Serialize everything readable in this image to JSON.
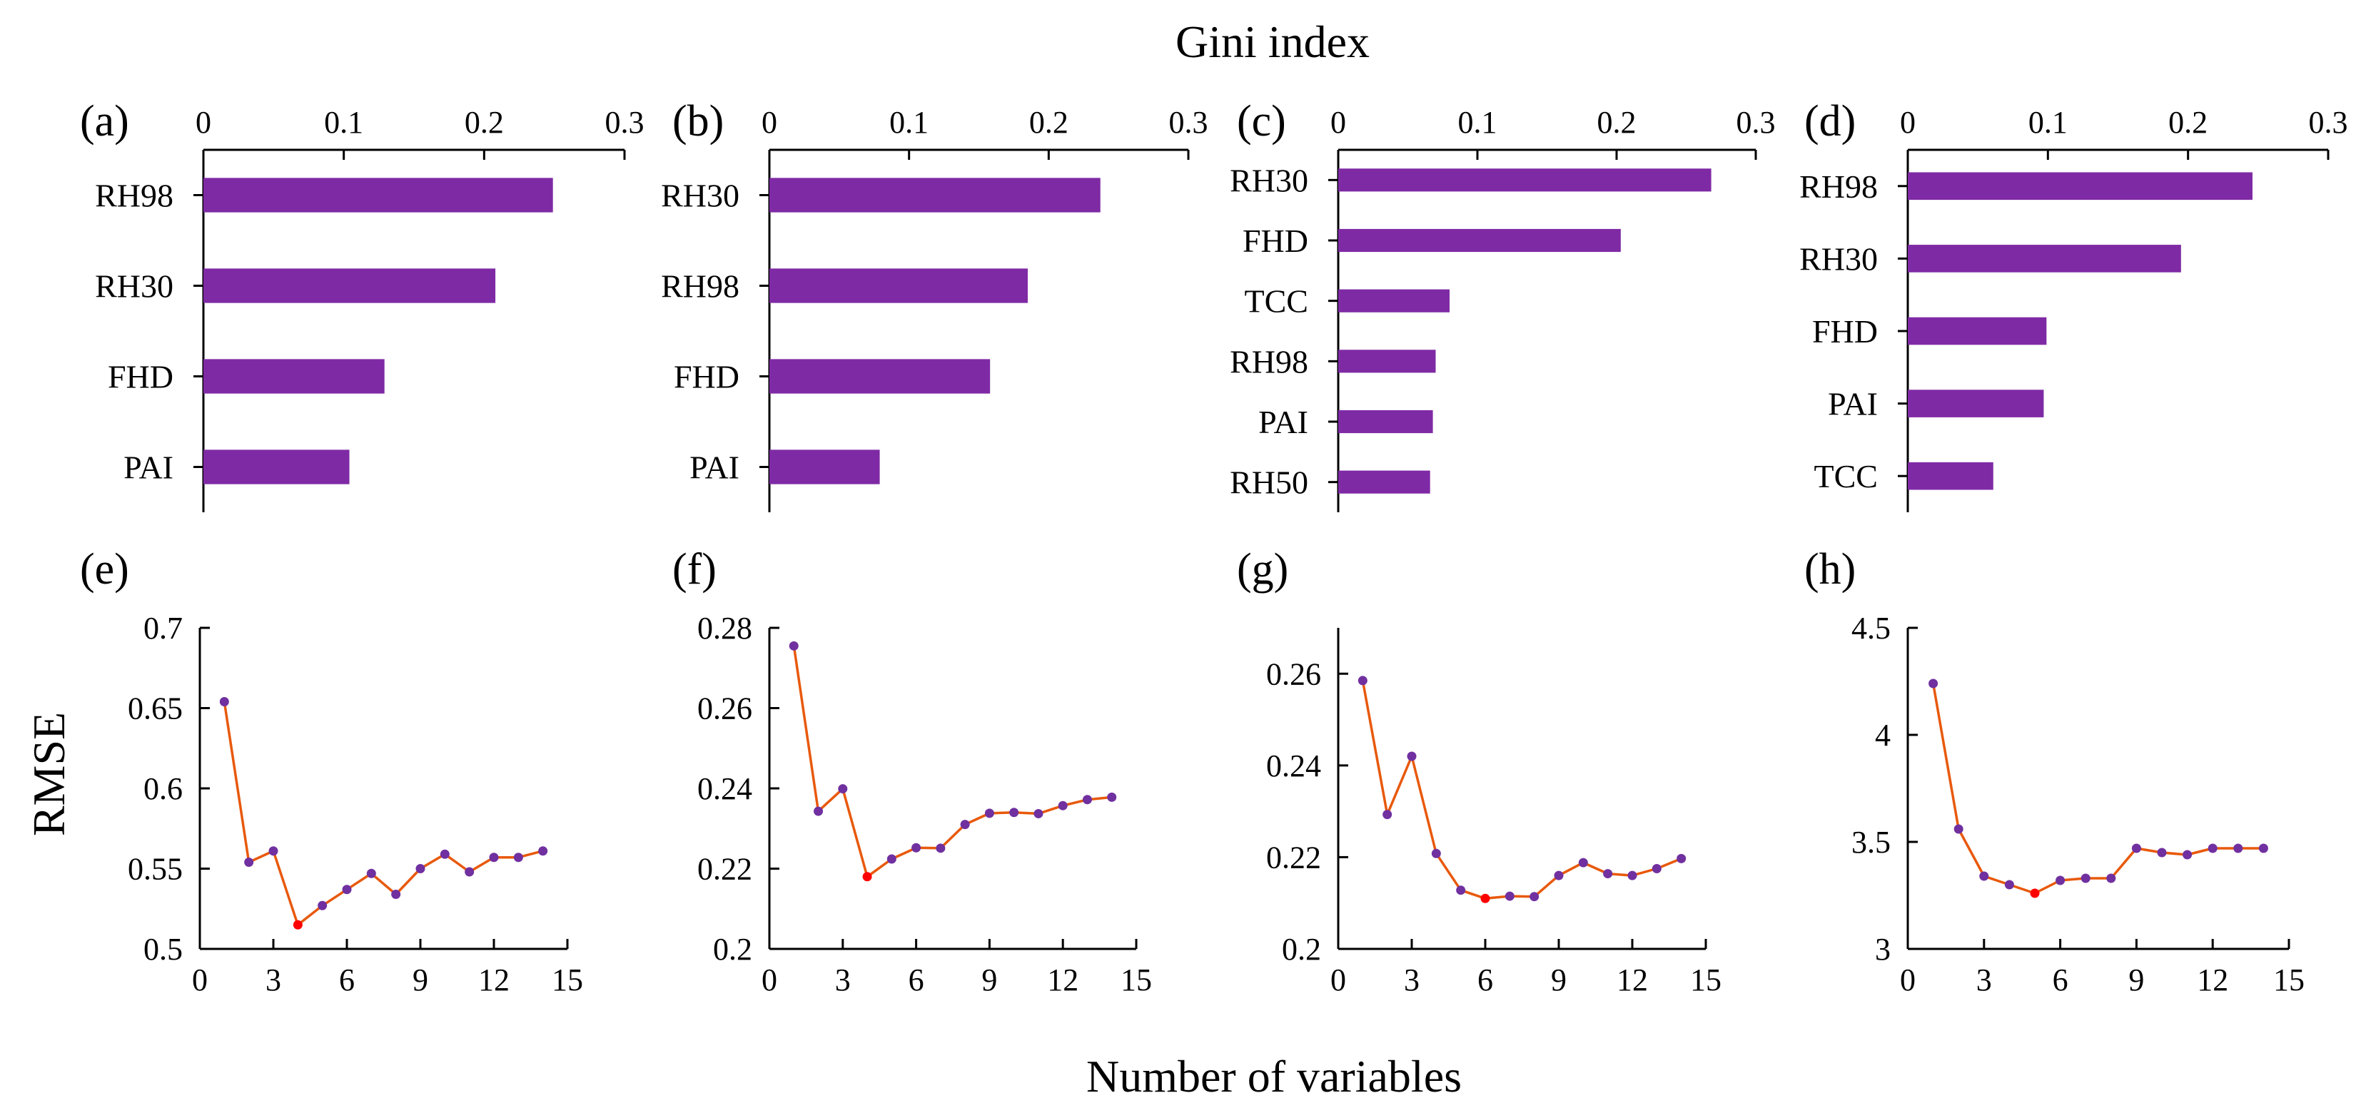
{
  "figure": {
    "top_title": "Gini index",
    "x_title_bottom": "Number of variables",
    "y_title_left": "RMSE"
  },
  "colors": {
    "bar": "#7f2aa5",
    "line": "#e8590c",
    "point": "#7030a0",
    "optimal_point": "#ff0000",
    "axis": "#000000"
  },
  "chart_data": [
    {
      "type": "bar",
      "orientation": "horizontal",
      "panel": "(a)",
      "xlabel": "Gini index",
      "xlim": [
        0,
        0.3
      ],
      "xticks": [
        "0",
        "0.1",
        "0.2",
        "0.3"
      ],
      "categories": [
        "RH98",
        "RH30",
        "FHD",
        "PAI"
      ],
      "values": [
        0.249,
        0.208,
        0.129,
        0.104
      ]
    },
    {
      "type": "bar",
      "orientation": "horizontal",
      "panel": "(b)",
      "xlabel": "Gini index",
      "xlim": [
        0,
        0.3
      ],
      "xticks": [
        "0",
        "0.1",
        "0.2",
        "0.3"
      ],
      "categories": [
        "RH30",
        "RH98",
        "FHD",
        "PAI"
      ],
      "values": [
        0.237,
        0.185,
        0.158,
        0.079
      ]
    },
    {
      "type": "bar",
      "orientation": "horizontal",
      "panel": "(c)",
      "xlabel": "Gini index",
      "xlim": [
        0,
        0.3
      ],
      "xticks": [
        "0",
        "0.1",
        "0.2",
        "0.3"
      ],
      "categories": [
        "RH30",
        "FHD",
        "TCC",
        "RH98",
        "PAI",
        "RH50"
      ],
      "values": [
        0.268,
        0.203,
        0.08,
        0.07,
        0.068,
        0.066
      ]
    },
    {
      "type": "bar",
      "orientation": "horizontal",
      "panel": "(d)",
      "xlabel": "Gini index",
      "xlim": [
        0,
        0.3
      ],
      "xticks": [
        "0",
        "0.1",
        "0.2",
        "0.3"
      ],
      "categories": [
        "RH98",
        "RH30",
        "FHD",
        "PAI",
        "TCC"
      ],
      "values": [
        0.246,
        0.195,
        0.099,
        0.097,
        0.061
      ]
    },
    {
      "type": "line",
      "panel": "(e)",
      "xlabel": "Number of variables",
      "ylabel": "RMSE",
      "xlim": [
        0,
        15
      ],
      "ylim": [
        0.5,
        0.7
      ],
      "xticks": [
        "0",
        "3",
        "6",
        "9",
        "12",
        "15"
      ],
      "yticks": [
        "0.5",
        "0.55",
        "0.6",
        "0.65",
        "0.7"
      ],
      "x": [
        1,
        2,
        3,
        4,
        5,
        6,
        7,
        8,
        9,
        10,
        11,
        12,
        13,
        14
      ],
      "y": [
        0.654,
        0.554,
        0.561,
        0.515,
        0.527,
        0.537,
        0.547,
        0.534,
        0.55,
        0.559,
        0.548,
        0.557,
        0.557,
        0.561
      ],
      "optimal_index": 3
    },
    {
      "type": "line",
      "panel": "(f)",
      "xlabel": "Number of variables",
      "ylabel": "RMSE",
      "xlim": [
        0,
        15
      ],
      "ylim": [
        0.2,
        0.28
      ],
      "xticks": [
        "0",
        "3",
        "6",
        "9",
        "12",
        "15"
      ],
      "yticks": [
        "0.2",
        "0.22",
        "0.24",
        "0.26",
        "0.28"
      ],
      "x": [
        1,
        2,
        3,
        4,
        5,
        6,
        7,
        8,
        9,
        10,
        11,
        12,
        13,
        14
      ],
      "y": [
        0.2755,
        0.2343,
        0.2399,
        0.218,
        0.2224,
        0.2252,
        0.2251,
        0.231,
        0.2338,
        0.234,
        0.2337,
        0.2357,
        0.2372,
        0.2378
      ],
      "optimal_index": 3
    },
    {
      "type": "line",
      "panel": "(g)",
      "xlabel": "Number of variables",
      "ylabel": "RMSE",
      "xlim": [
        0,
        15
      ],
      "ylim": [
        0.2,
        0.27
      ],
      "xticks": [
        "0",
        "3",
        "6",
        "9",
        "12",
        "15"
      ],
      "yticks": [
        "0.2",
        "0.22",
        "0.24",
        "0.26"
      ],
      "x": [
        1,
        2,
        3,
        4,
        5,
        6,
        7,
        8,
        9,
        10,
        11,
        12,
        13,
        14
      ],
      "y": [
        0.2585,
        0.2293,
        0.242,
        0.2208,
        0.2128,
        0.211,
        0.2115,
        0.2114,
        0.216,
        0.2188,
        0.2164,
        0.216,
        0.2175,
        0.2197
      ],
      "optimal_index": 5
    },
    {
      "type": "line",
      "panel": "(h)",
      "xlabel": "Number of variables",
      "ylabel": "RMSE",
      "xlim": [
        0,
        15
      ],
      "ylim": [
        3,
        4.5
      ],
      "xticks": [
        "0",
        "3",
        "6",
        "9",
        "12",
        "15"
      ],
      "yticks": [
        "3",
        "3.5",
        "4",
        "4.5"
      ],
      "x": [
        1,
        2,
        3,
        4,
        5,
        6,
        7,
        8,
        9,
        10,
        11,
        12,
        13,
        14
      ],
      "y": [
        4.24,
        3.56,
        3.34,
        3.3,
        3.26,
        3.32,
        3.33,
        3.33,
        3.47,
        3.45,
        3.44,
        3.47,
        3.47,
        3.47
      ],
      "optimal_index": 4
    }
  ]
}
